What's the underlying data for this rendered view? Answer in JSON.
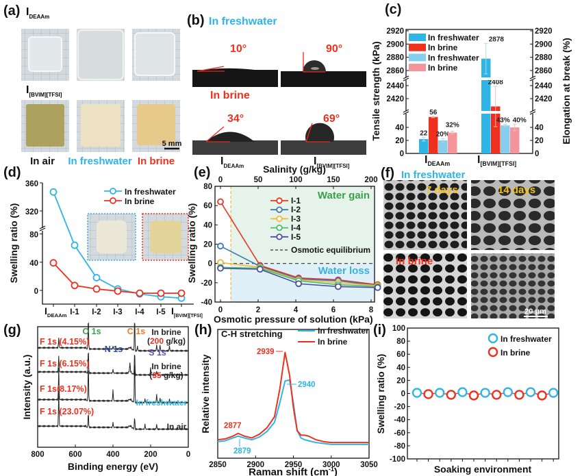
{
  "panel_labels": {
    "a": "(a)",
    "b": "(b)",
    "c": "(c)",
    "d": "(d)",
    "e": "(e)",
    "f": "(f)",
    "g": "(g)",
    "h": "(h)",
    "i": "(i)"
  },
  "materials": {
    "deaam": {
      "main": "I",
      "sub": "DEAAm"
    },
    "bvim": {
      "main": "I",
      "sub": "[BVIM][TFSI]"
    }
  },
  "panel_a": {
    "conditions": [
      "In air",
      "In freshwater",
      "In brine"
    ],
    "scale_bar": "5 mm"
  },
  "panel_b": {
    "freshwater_label": "In freshwater",
    "brine_label": "In brine",
    "angles": {
      "deaam_fresh": "10°",
      "bvim_fresh": "90°",
      "deaam_brine": "34°",
      "bvim_brine": "69°"
    }
  },
  "panel_f": {
    "freshwater_label": "In freshwater",
    "brine_label": "In brine",
    "times": [
      "7 days",
      "14 days"
    ],
    "scale_bar": "20 μm"
  },
  "colors": {
    "freshwater": "#2fb4e6",
    "brine": "#f0301e",
    "freshwater_light": "#86cdee",
    "brine_light": "#f5949a",
    "I-1": "#ee3322",
    "I-2": "#3a78b8",
    "I-3": "#f7b733",
    "I-4": "#4cbf6a",
    "I-5": "#4a4fa0",
    "water_gain": "#3aa04a",
    "water_loss": "#3ab0e0"
  },
  "chart_data": [
    {
      "panel": "c",
      "type": "bar",
      "categories": [
        "I_DEAAm",
        "I_[BVIM][TFSI]"
      ],
      "ylabel": "Tensile strength (kPa)",
      "y2label": "Elongation at break (%)",
      "y_ticks": [
        "0",
        "20",
        "40",
        "2420",
        "2440",
        "2860",
        "2880",
        "2900",
        "2920"
      ],
      "y_tick_values": [
        0,
        20,
        40,
        2420,
        2440,
        2860,
        2880,
        2900,
        2920
      ],
      "y_breaks": [
        [
          60,
          2400
        ],
        [
          2450,
          2850
        ]
      ],
      "series": [
        {
          "name": "In freshwater",
          "axis": "left",
          "values": [
            22,
            2878
          ],
          "errors": [
            3,
            23
          ],
          "labels": [
            "22",
            "2878"
          ]
        },
        {
          "name": "In brine",
          "axis": "left",
          "values": [
            56,
            2408
          ],
          "errors": [
            1,
            31
          ],
          "labels": [
            "56",
            "2408"
          ]
        },
        {
          "name": "In freshwater",
          "axis": "right",
          "values": [
            20,
            43
          ],
          "errors": [
            3,
            2
          ],
          "labels": [
            "20%",
            "43%"
          ]
        },
        {
          "name": "In brine",
          "axis": "right",
          "values": [
            32,
            40
          ],
          "errors": [
            2,
            5
          ],
          "labels": [
            "32%",
            "40%"
          ]
        }
      ],
      "legend": "top-left"
    },
    {
      "panel": "d",
      "type": "line",
      "categories": [
        "I_DEAAm",
        "I-1",
        "I-2",
        "I-3",
        "I-4",
        "I-5",
        "I_[BVIM][TFSI]"
      ],
      "ylabel": "Swelling ratio (%)",
      "y_ticks": [
        "0",
        "40",
        "80",
        "320",
        "360"
      ],
      "y_tick_values": [
        0,
        40,
        80,
        320,
        360
      ],
      "y_break": [
        85,
        300
      ],
      "series": [
        {
          "name": "In freshwater",
          "values": [
            347,
            64,
            18,
            2,
            -5,
            -9,
            -11
          ]
        },
        {
          "name": "In brine",
          "values": [
            39,
            7,
            2,
            -1,
            -4,
            -4,
            -4
          ]
        }
      ],
      "legend": "top-right"
    },
    {
      "panel": "e",
      "type": "line",
      "xlabel": "Osmotic pressure of solution (kPa)",
      "x2label": "Salinity (g/kg)",
      "ylabel": "Swelling ratio (%)",
      "xlim": [
        -0.3,
        8.7
      ],
      "ylim": [
        -40,
        80
      ],
      "x_ticks": [
        0,
        2,
        4,
        6,
        8
      ],
      "x2_ticks": [
        0,
        50,
        100,
        150,
        200
      ],
      "y_ticks": [
        -40,
        -20,
        0,
        20,
        40,
        60,
        80
      ],
      "x": [
        0,
        2.1,
        4.15,
        6.25,
        8.35
      ],
      "series": [
        {
          "name": "I-1",
          "values": [
            64,
            -2,
            -15,
            -17,
            -22
          ]
        },
        {
          "name": "I-2",
          "values": [
            18,
            -3,
            -16,
            -18,
            -23
          ]
        },
        {
          "name": "I-3",
          "values": [
            1,
            -4,
            -17,
            -20,
            -23
          ]
        },
        {
          "name": "I-4",
          "values": [
            -4,
            -5,
            -18,
            -22,
            -24
          ]
        },
        {
          "name": "I-5",
          "values": [
            -5,
            -6,
            -21,
            -24,
            -25
          ]
        }
      ],
      "equilibrium_label": "Osmotic equilibrium",
      "region_labels": [
        "Water gain",
        "Water loss"
      ],
      "threshold_x": 0.55
    },
    {
      "panel": "g",
      "type": "line",
      "xlabel": "Binding energy (eV)",
      "ylabel": "Intensity (a.u.)",
      "xlim": [
        800,
        0
      ],
      "x_ticks": [
        800,
        600,
        400,
        200,
        0
      ],
      "peak_labels": [
        {
          "text": "O 1s",
          "color": "#3aa04a"
        },
        {
          "text": "C 1s",
          "color": "#f07a2a"
        },
        {
          "text": "N 1s",
          "color": "#2a4ea0"
        },
        {
          "text": "S 1s",
          "color": "#6a4fb0"
        }
      ],
      "series": [
        {
          "name": "In brine",
          "sub": "200",
          "unit": " g/kg)",
          "open": "(",
          "baseline": 8.0,
          "f_label": "F 1s (4.15%)",
          "peaks": [
            [
              688,
              0.8
            ],
            [
              531,
              2.6
            ],
            [
              400,
              0.2
            ],
            [
              285,
              2.8
            ],
            [
              270,
              0.4
            ],
            [
              168,
              0.5
            ],
            [
              150,
              0.5
            ],
            [
              100,
              0.4
            ]
          ]
        },
        {
          "name": "In brine",
          "sub": "35",
          "unit": " g/kg)",
          "open": "(",
          "baseline": 6.0,
          "f_label": "F 1s (6.15%)",
          "peaks": [
            [
              688,
              1.3
            ],
            [
              531,
              2.0
            ],
            [
              400,
              0.3
            ],
            [
              310,
              0.8
            ],
            [
              285,
              2.0
            ],
            [
              200,
              0.6
            ],
            [
              168,
              0.3
            ]
          ]
        },
        {
          "name": "In freshwater",
          "baseline": 3.7,
          "f_label": "F 1s(8.17%)",
          "peaks": [
            [
              688,
              2.6
            ],
            [
              531,
              3.0
            ],
            [
              400,
              0.9
            ],
            [
              285,
              3.8
            ],
            [
              230,
              0.3
            ],
            [
              168,
              0.7
            ],
            [
              150,
              0.4
            ],
            [
              100,
              0.3
            ]
          ]
        },
        {
          "name": "In air",
          "baseline": 1.5,
          "f_label": "F 1s (23.07%)",
          "peaks": [
            [
              688,
              2.9
            ],
            [
              531,
              1.2
            ],
            [
              400,
              0.4
            ],
            [
              285,
              1.0
            ],
            [
              230,
              0.4
            ],
            [
              168,
              0.4
            ]
          ]
        }
      ]
    },
    {
      "panel": "h",
      "type": "line",
      "xlabel": "Raman shift (cm",
      "xlabel_sup": "-1",
      "xlabel_end": ")",
      "ylabel": "Relative intensity",
      "title": "C-H stretching",
      "xlim": [
        2850,
        3050
      ],
      "x_ticks": [
        2850,
        2900,
        2950,
        3000,
        3050
      ],
      "x": [
        2850,
        2860,
        2870,
        2877,
        2885,
        2895,
        2905,
        2915,
        2925,
        2932,
        2939,
        2945,
        2950,
        2955,
        2960,
        2965,
        2970,
        2980,
        2990,
        3000,
        3025,
        3050
      ],
      "series": [
        {
          "name": "In freshwater",
          "values": [
            0.03,
            0.04,
            0.07,
            0.09,
            0.07,
            0.05,
            0.08,
            0.14,
            0.24,
            0.45,
            0.69,
            0.7,
            0.45,
            0.15,
            0.07,
            0.05,
            0.04,
            0.02,
            0.01,
            0.0,
            0.0,
            0.0
          ],
          "peaks": [
            "2940",
            "2879"
          ]
        },
        {
          "name": "In brine",
          "values": [
            0.05,
            0.06,
            0.09,
            0.12,
            0.09,
            0.07,
            0.11,
            0.18,
            0.3,
            0.6,
            1.0,
            0.75,
            0.4,
            0.15,
            0.1,
            0.1,
            0.09,
            0.05,
            0.03,
            0.02,
            0.02,
            0.02
          ],
          "peaks": [
            "2939",
            "2877"
          ]
        }
      ]
    },
    {
      "panel": "i",
      "type": "scatter",
      "xlabel": "Soaking environment",
      "ylabel": "Swelling ratio (%)",
      "ylim": [
        -100,
        100
      ],
      "y_ticks": [
        -100,
        -80,
        -60,
        -40,
        -20,
        0,
        20,
        40,
        60,
        80,
        100
      ],
      "series": [
        {
          "name": "In freshwater",
          "x": [
            1,
            3,
            5,
            7,
            9,
            11,
            13
          ],
          "values": [
            1,
            1,
            2,
            1,
            2,
            2,
            1
          ]
        },
        {
          "name": "In brine",
          "x": [
            2,
            4,
            6,
            8,
            10,
            12
          ],
          "values": [
            -1,
            -2,
            -3,
            -2,
            -2,
            -3
          ]
        }
      ]
    }
  ]
}
